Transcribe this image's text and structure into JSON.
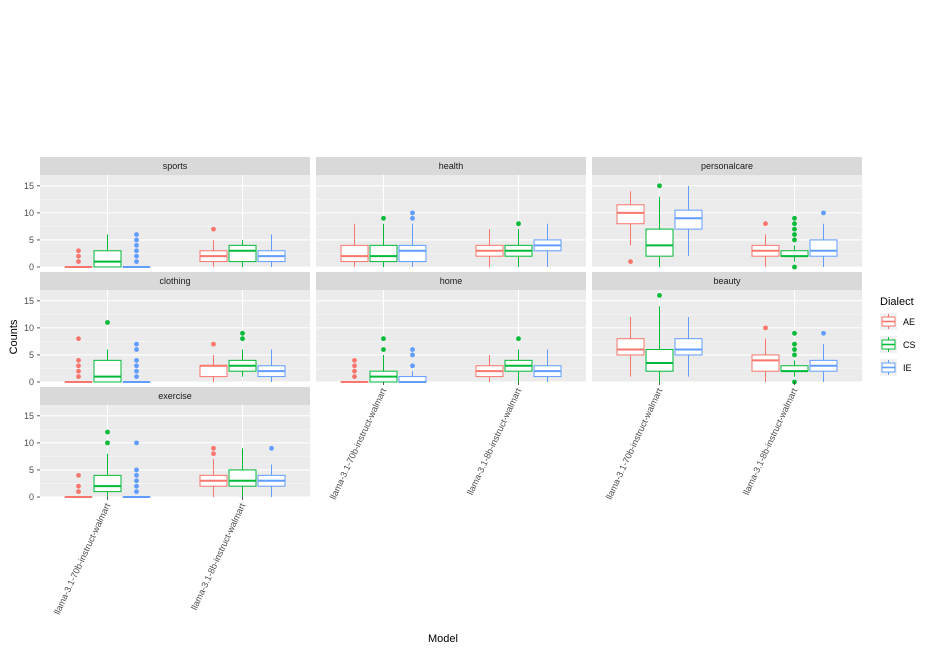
{
  "chart_data": {
    "type": "boxplot",
    "xlabel": "Model",
    "ylabel": "Counts",
    "ylim": [
      0,
      17
    ],
    "yticks": [
      0,
      5,
      10,
      15
    ],
    "grid": true,
    "legend": {
      "title": "Dialect",
      "placement": "right",
      "items": [
        {
          "name": "AE",
          "color": "#F8766D"
        },
        {
          "name": "CS",
          "color": "#00BA38"
        },
        {
          "name": "IE",
          "color": "#619CFF"
        }
      ]
    },
    "models": [
      "llama-3.1-70b-instruct-walmart",
      "llama-3.1-8b-instruct-walmart"
    ],
    "dialects": [
      "AE",
      "CS",
      "IE"
    ],
    "facets": [
      {
        "name": "sports",
        "boxes": [
          [
            {
              "min": 0,
              "q1": 0,
              "median": 0,
              "q3": 0,
              "max": 0,
              "out": [
                1,
                2,
                3
              ]
            },
            {
              "min": 0,
              "q1": 0,
              "median": 1,
              "q3": 3,
              "max": 6,
              "out": []
            },
            {
              "min": 0,
              "q1": 0,
              "median": 0,
              "q3": 0,
              "max": 0,
              "out": [
                1,
                2,
                3,
                4,
                5,
                6
              ]
            }
          ],
          [
            {
              "min": 0,
              "q1": 1,
              "median": 2,
              "q3": 3,
              "max": 5,
              "out": [
                7
              ]
            },
            {
              "min": 0,
              "q1": 1,
              "median": 3,
              "q3": 4,
              "max": 5,
              "out": []
            },
            {
              "min": 0,
              "q1": 1,
              "median": 2,
              "q3": 3,
              "max": 6,
              "out": []
            }
          ]
        ]
      },
      {
        "name": "health",
        "boxes": [
          [
            {
              "min": 0,
              "q1": 1,
              "median": 2,
              "q3": 4,
              "max": 8,
              "out": []
            },
            {
              "min": 0,
              "q1": 1,
              "median": 2,
              "q3": 4,
              "max": 8,
              "out": [
                9
              ]
            },
            {
              "min": 0,
              "q1": 1,
              "median": 3,
              "q3": 4,
              "max": 8,
              "out": [
                9,
                10
              ]
            }
          ],
          [
            {
              "min": 0,
              "q1": 2,
              "median": 3,
              "q3": 4,
              "max": 7,
              "out": []
            },
            {
              "min": 0,
              "q1": 2,
              "median": 3,
              "q3": 4,
              "max": 7,
              "out": [
                8
              ]
            },
            {
              "min": 0,
              "q1": 3,
              "median": 4,
              "q3": 5,
              "max": 8,
              "out": []
            }
          ]
        ]
      },
      {
        "name": "personalcare",
        "boxes": [
          [
            {
              "min": 4,
              "q1": 8,
              "median": 10,
              "q3": 11.5,
              "max": 14,
              "out": [
                1
              ]
            },
            {
              "min": 0,
              "q1": 2,
              "median": 4,
              "q3": 7,
              "max": 13,
              "out": [
                15
              ]
            },
            {
              "min": 2,
              "q1": 7,
              "median": 9,
              "q3": 10.5,
              "max": 15,
              "out": []
            }
          ],
          [
            {
              "min": 0,
              "q1": 2,
              "median": 3,
              "q3": 4,
              "max": 6,
              "out": [
                8
              ]
            },
            {
              "min": 1,
              "q1": 2,
              "median": 2,
              "q3": 3,
              "max": 4,
              "out": [
                0,
                5,
                6,
                7,
                8,
                9
              ]
            },
            {
              "min": 0,
              "q1": 2,
              "median": 3,
              "q3": 5,
              "max": 8,
              "out": [
                10
              ]
            }
          ]
        ]
      },
      {
        "name": "clothing",
        "boxes": [
          [
            {
              "min": 0,
              "q1": 0,
              "median": 0,
              "q3": 0,
              "max": 0,
              "out": [
                1,
                2,
                3,
                4,
                8
              ]
            },
            {
              "min": 0,
              "q1": 0,
              "median": 1,
              "q3": 4,
              "max": 6,
              "out": [
                11
              ]
            },
            {
              "min": 0,
              "q1": 0,
              "median": 0,
              "q3": 0,
              "max": 0,
              "out": [
                1,
                2,
                3,
                4,
                6,
                7
              ]
            }
          ],
          [
            {
              "min": 0,
              "q1": 1,
              "median": 3,
              "q3": 3,
              "max": 5,
              "out": [
                7
              ]
            },
            {
              "min": 1,
              "q1": 2,
              "median": 3,
              "q3": 4,
              "max": 6,
              "out": [
                8,
                9
              ]
            },
            {
              "min": 0,
              "q1": 1,
              "median": 2,
              "q3": 3,
              "max": 6,
              "out": []
            }
          ]
        ]
      },
      {
        "name": "home",
        "boxes": [
          [
            {
              "min": 0,
              "q1": 0,
              "median": 0,
              "q3": 0,
              "max": 0,
              "out": [
                1,
                2,
                3,
                4
              ]
            },
            {
              "min": 0,
              "q1": 0,
              "median": 1,
              "q3": 2,
              "max": 5,
              "out": [
                6,
                8
              ]
            },
            {
              "min": 0,
              "q1": 0,
              "median": 0,
              "q3": 1,
              "max": 2,
              "out": [
                3,
                5,
                6
              ]
            }
          ],
          [
            {
              "min": 0,
              "q1": 1,
              "median": 2,
              "q3": 3,
              "max": 5,
              "out": []
            },
            {
              "min": 0,
              "q1": 2,
              "median": 3,
              "q3": 4,
              "max": 6,
              "out": [
                8
              ]
            },
            {
              "min": 0,
              "q1": 1,
              "median": 2,
              "q3": 3,
              "max": 6,
              "out": []
            }
          ]
        ]
      },
      {
        "name": "beauty",
        "boxes": [
          [
            {
              "min": 1,
              "q1": 5,
              "median": 6,
              "q3": 8,
              "max": 12,
              "out": []
            },
            {
              "min": 0,
              "q1": 2,
              "median": 3.5,
              "q3": 6,
              "max": 14,
              "out": [
                16
              ]
            },
            {
              "min": 1,
              "q1": 5,
              "median": 6,
              "q3": 8,
              "max": 12,
              "out": []
            }
          ],
          [
            {
              "min": 0,
              "q1": 2,
              "median": 4,
              "q3": 5,
              "max": 8,
              "out": [
                10
              ]
            },
            {
              "min": 1,
              "q1": 2,
              "median": 2,
              "q3": 3,
              "max": 4,
              "out": [
                0,
                5,
                6,
                7,
                9
              ]
            },
            {
              "min": 0,
              "q1": 2,
              "median": 3,
              "q3": 4,
              "max": 7,
              "out": [
                9
              ]
            }
          ]
        ]
      },
      {
        "name": "exercise",
        "boxes": [
          [
            {
              "min": 0,
              "q1": 0,
              "median": 0,
              "q3": 0,
              "max": 0,
              "out": [
                1,
                2,
                4
              ]
            },
            {
              "min": 0,
              "q1": 1,
              "median": 2,
              "q3": 4,
              "max": 8,
              "out": [
                10,
                12
              ]
            },
            {
              "min": 0,
              "q1": 0,
              "median": 0,
              "q3": 0,
              "max": 0,
              "out": [
                1,
                2,
                3,
                4,
                5,
                10
              ]
            }
          ],
          [
            {
              "min": 0,
              "q1": 2,
              "median": 3,
              "q3": 4,
              "max": 7,
              "out": [
                8,
                9
              ]
            },
            {
              "min": 0,
              "q1": 2,
              "median": 3,
              "q3": 5,
              "max": 9,
              "out": []
            },
            {
              "min": 0,
              "q1": 2,
              "median": 3,
              "q3": 4,
              "max": 6,
              "out": [
                9
              ]
            }
          ]
        ]
      }
    ]
  }
}
